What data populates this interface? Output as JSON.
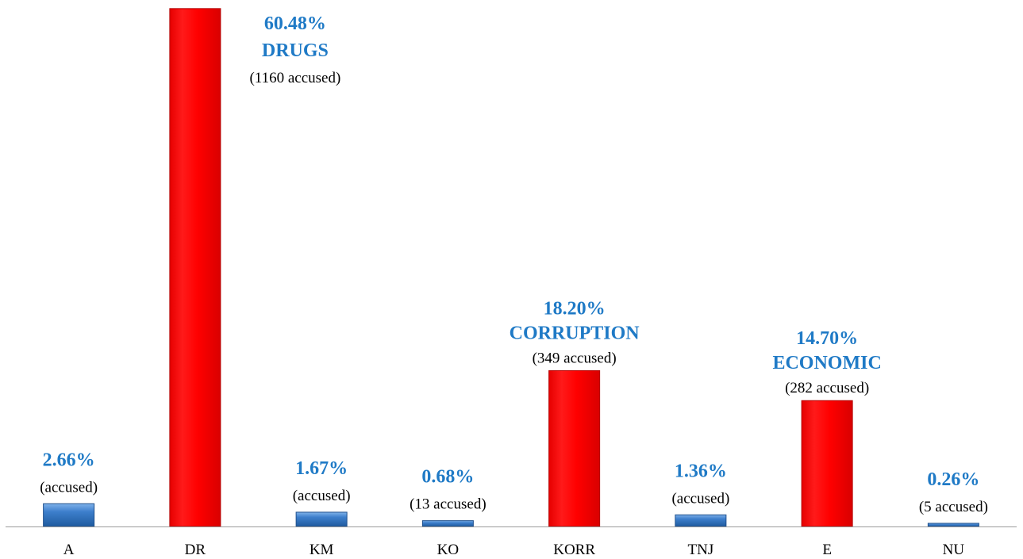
{
  "colors": {
    "highlight": "#ff0000",
    "normal": "#2e6db4",
    "label": "#1f7ac6",
    "axis": "#9a9a9a"
  },
  "chart_data": {
    "type": "bar",
    "title": "",
    "xlabel": "",
    "ylabel": "",
    "ylim": [
      0,
      62
    ],
    "grid": false,
    "legend": "none",
    "categories": [
      "A",
      "DR",
      "KM",
      "KO",
      "KORR",
      "TNJ",
      "E",
      "NU"
    ],
    "values": [
      2.66,
      60.48,
      1.67,
      0.68,
      18.2,
      1.36,
      14.7,
      0.26
    ],
    "highlighted": [
      false,
      true,
      false,
      false,
      true,
      false,
      true,
      false
    ],
    "labels": [
      {
        "pct": "2.66%",
        "name": "",
        "count": "(accused)"
      },
      {
        "pct": "60.48%",
        "name": "DRUGS",
        "count": "(1160 accused)"
      },
      {
        "pct": "1.67%",
        "name": "",
        "count": "(accused)"
      },
      {
        "pct": "0.68%",
        "name": "",
        "count": "(13 accused)"
      },
      {
        "pct": "18.20%",
        "name": "CORRUPTION",
        "count": "(349 accused)"
      },
      {
        "pct": "1.36%",
        "name": "",
        "count": "(accused)"
      },
      {
        "pct": "14.70%",
        "name": "ECONOMIC",
        "count": "(282 accused)"
      },
      {
        "pct": "0.26%",
        "name": "",
        "count": "(5 accused)"
      }
    ]
  }
}
